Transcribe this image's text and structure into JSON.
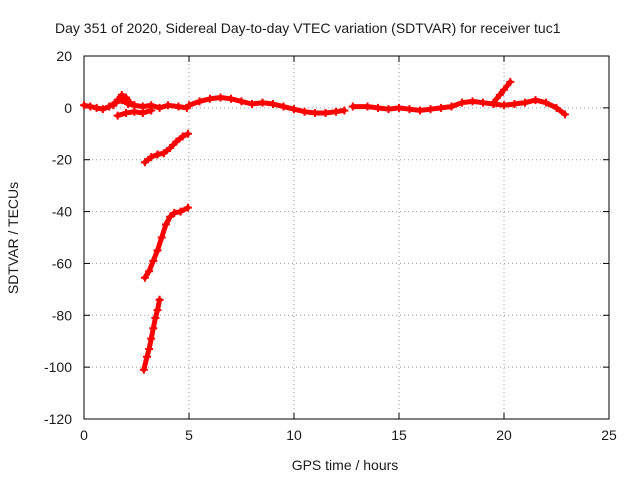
{
  "chart_data": {
    "type": "scatter",
    "title": "Day 351 of 2020, Sidereal Day-to-day VTEC variation (SDTVAR) for receiver tuc1",
    "xlabel": "GPS time / hours",
    "ylabel": "SDTVAR / TECUs",
    "xlim": [
      0,
      25
    ],
    "ylim": [
      -120,
      20
    ],
    "x_ticks": [
      0,
      5,
      10,
      15,
      20,
      25
    ],
    "y_ticks": [
      20,
      0,
      -20,
      -40,
      -60,
      -80,
      -100,
      -120
    ],
    "grid": true,
    "series_color": "#ff0000",
    "series": [
      {
        "name": "arc-main-1",
        "x": [
          0,
          0.3,
          0.6,
          0.9,
          1.2,
          1.5,
          1.8,
          2.1,
          2.4,
          2.8,
          3.2,
          3.6,
          4.0,
          4.5,
          4.9
        ],
        "y": [
          1,
          0.5,
          0,
          -0.5,
          0.5,
          2,
          3,
          1.5,
          1,
          0.5,
          1,
          0,
          1,
          0.5,
          0
        ]
      },
      {
        "name": "arc-spike-1",
        "x": [
          1.4,
          1.6,
          1.8,
          2.0,
          2.2,
          2.4
        ],
        "y": [
          1,
          3,
          5,
          4,
          2,
          1
        ]
      },
      {
        "name": "arc-low-1",
        "x": [
          1.6,
          2.0,
          2.4,
          2.8,
          3.2
        ],
        "y": [
          -3,
          -2,
          -1.5,
          -2,
          -1
        ]
      },
      {
        "name": "arc-main-2",
        "x": [
          5.0,
          5.5,
          6.0,
          6.5,
          7.0,
          7.5,
          8.0,
          8.5,
          9.0,
          9.5,
          10.0,
          10.5,
          11.0,
          11.5,
          12.0,
          12.4
        ],
        "y": [
          1,
          2.5,
          3.5,
          4,
          3.5,
          2.5,
          1.5,
          2,
          1.5,
          0.5,
          -0.5,
          -1.5,
          -2,
          -2,
          -1.5,
          -1
        ]
      },
      {
        "name": "arc-main-3",
        "x": [
          12.8,
          13.5,
          14.0,
          14.5,
          15.0,
          15.5,
          16.0,
          16.5,
          17.0,
          17.5,
          18.0,
          18.5,
          19.0,
          19.5,
          20.0,
          20.5,
          21.0,
          21.5,
          22.0,
          22.5,
          22.9
        ],
        "y": [
          0.5,
          0.5,
          0,
          -0.5,
          0,
          -0.5,
          -1,
          -0.5,
          0,
          0.5,
          2,
          2.5,
          2,
          1.5,
          1,
          1.5,
          2,
          3,
          2,
          0,
          -2.5
        ]
      },
      {
        "name": "arc-spike-2",
        "x": [
          19.5,
          19.8,
          20.0,
          20.3
        ],
        "y": [
          2,
          5,
          7,
          10
        ]
      },
      {
        "name": "arc-neg-20",
        "x": [
          2.9,
          3.2,
          3.5,
          3.8,
          4.1,
          4.4,
          4.7,
          4.95
        ],
        "y": [
          -21,
          -19,
          -18,
          -17.5,
          -15.5,
          -13,
          -11,
          -10
        ]
      },
      {
        "name": "arc-neg-60",
        "x": [
          2.9,
          3.1,
          3.3,
          3.5,
          3.7,
          3.9,
          4.1,
          4.3,
          4.6,
          4.95
        ],
        "y": [
          -65.5,
          -63,
          -59,
          -55,
          -50,
          -45,
          -42,
          -40.5,
          -40,
          -38.5
        ]
      },
      {
        "name": "arc-neg-100",
        "x": [
          2.85,
          3.0,
          3.1,
          3.2,
          3.3,
          3.4,
          3.5,
          3.6
        ],
        "y": [
          -101,
          -96,
          -93,
          -89,
          -85,
          -81,
          -78,
          -74
        ]
      }
    ]
  }
}
